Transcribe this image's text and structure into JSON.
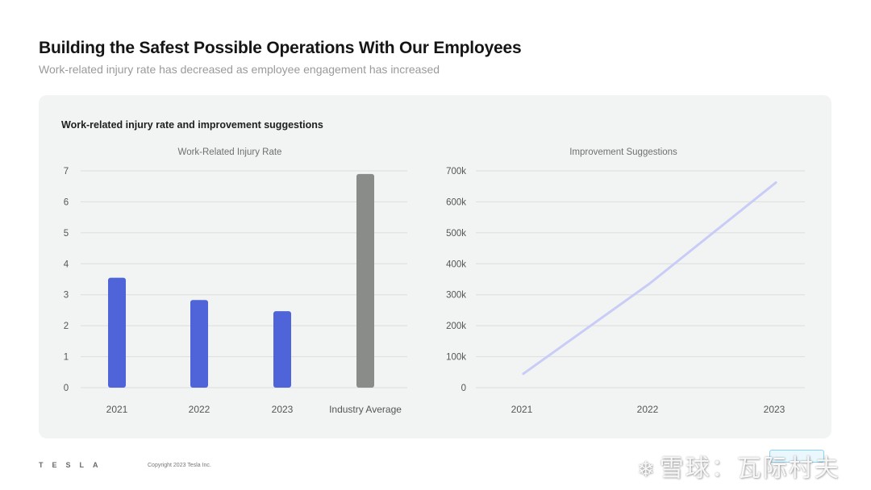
{
  "header": {
    "title": "Building the Safest Possible Operations With Our Employees",
    "subtitle": "Work-related injury rate has decreased as employee engagement has increased"
  },
  "panel": {
    "title": "Work-related injury rate and improvement suggestions"
  },
  "footer": {
    "logo": "TESLA",
    "copyright": "Copyright 2023 Tesla Inc."
  },
  "watermark": {
    "icon": "snowball-icon",
    "text": "雪球：瓦际村夫"
  },
  "colors": {
    "bar_blue": "#4f64d8",
    "bar_gray": "#8a8c8a",
    "line": "#c9ccf6",
    "grid": "#dcdedd",
    "tick": "#555555",
    "chart_title": "#6f6f6f"
  },
  "chart_data": [
    {
      "type": "bar",
      "title": "Work-Related Injury Rate",
      "categories": [
        "2021",
        "2022",
        "2023",
        "Industry Average"
      ],
      "values": [
        3.55,
        2.83,
        2.47,
        6.9
      ],
      "bar_colors": [
        "#4f64d8",
        "#4f64d8",
        "#4f64d8",
        "#8a8c8a"
      ],
      "ylim": [
        0,
        7
      ],
      "yticks": [
        "0",
        "1",
        "2",
        "3",
        "4",
        "5",
        "6",
        "7"
      ],
      "grid": true,
      "xlabel": "",
      "ylabel": ""
    },
    {
      "type": "line",
      "title": "Improvement Suggestions",
      "x": [
        "2021",
        "2022",
        "2023"
      ],
      "values": [
        45000,
        335000,
        662000
      ],
      "ylim": [
        0,
        700000
      ],
      "yticks": [
        "0",
        "100k",
        "200k",
        "300k",
        "400k",
        "500k",
        "600k",
        "700k"
      ],
      "grid": true,
      "xlabel": "",
      "ylabel": ""
    }
  ]
}
